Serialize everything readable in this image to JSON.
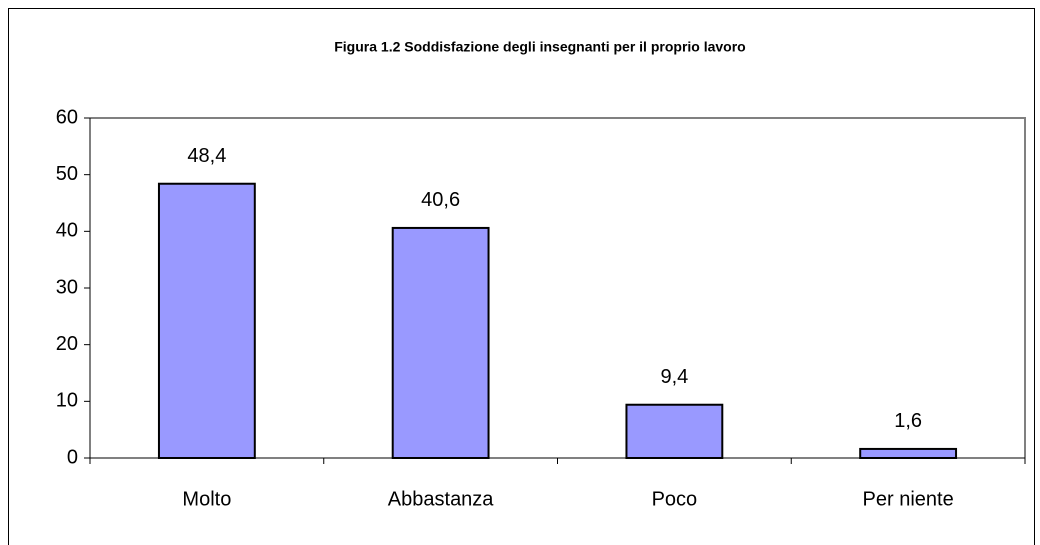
{
  "chart_data": {
    "type": "bar",
    "title": "Figura 1.2 Soddisfazione degli insegnanti per il proprio lavoro",
    "categories": [
      "Molto",
      "Abbastanza",
      "Poco",
      "Per niente"
    ],
    "values": [
      48.4,
      40.6,
      9.4,
      1.6
    ],
    "value_labels": [
      "48,4",
      "40,6",
      "9,4",
      "1,6"
    ],
    "color": "#9999ff",
    "ylim": [
      0,
      60
    ],
    "yticks": [
      0,
      10,
      20,
      30,
      40,
      50,
      60
    ],
    "grid": false
  }
}
